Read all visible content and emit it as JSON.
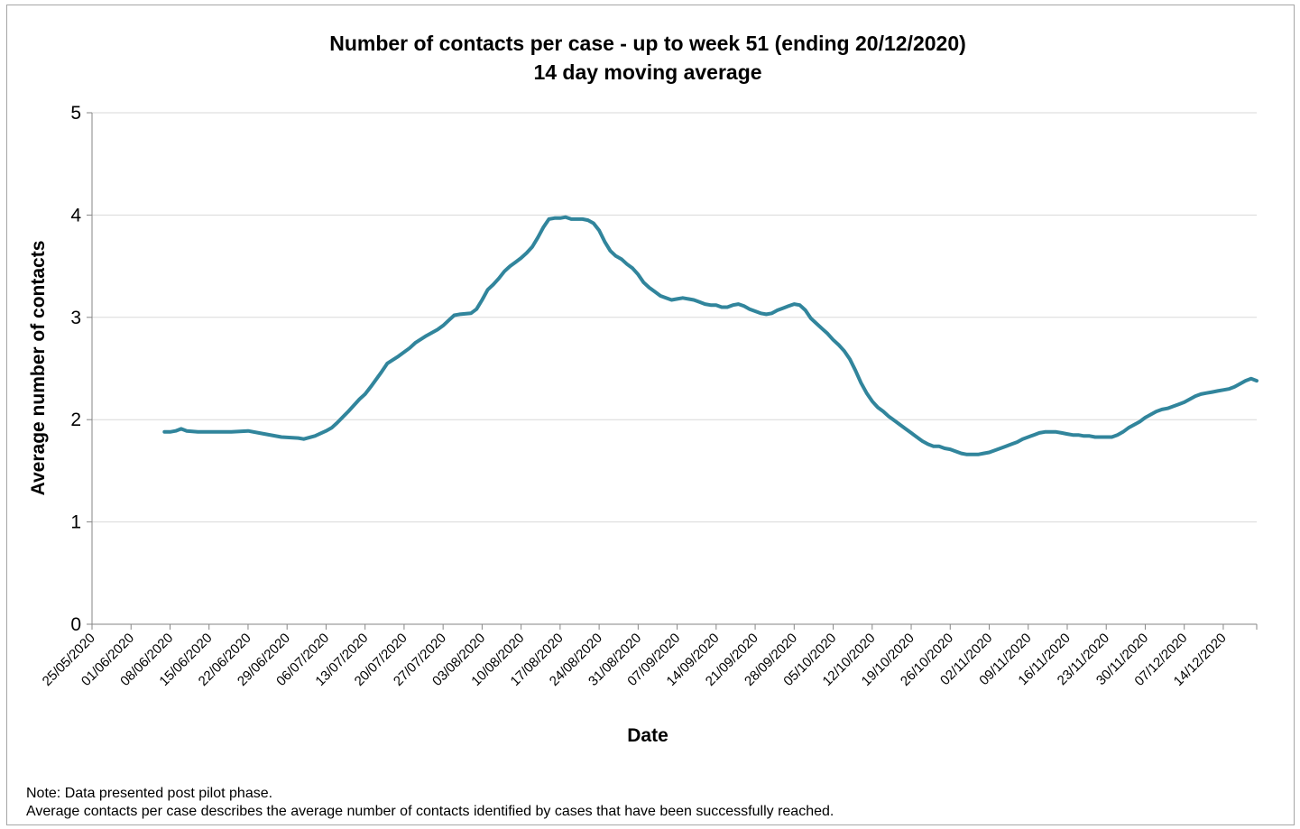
{
  "chart_data": {
    "type": "line",
    "title": "Number of contacts per case - up to week 51 (ending 20/12/2020)",
    "subtitle": "14 day moving average",
    "xlabel": "Date",
    "ylabel": "Average number of contacts",
    "ylim": [
      0,
      5
    ],
    "yticks": [
      "0",
      "1",
      "2",
      "3",
      "4",
      "5"
    ],
    "grid": "horizontal",
    "legend": "none",
    "line_color": "#31859c",
    "x_range": [
      "2020-05-25",
      "2020-12-20"
    ],
    "x_ticks": [
      "25/05/2020",
      "01/06/2020",
      "08/06/2020",
      "15/06/2020",
      "22/06/2020",
      "29/06/2020",
      "06/07/2020",
      "13/07/2020",
      "20/07/2020",
      "27/07/2020",
      "03/08/2020",
      "10/08/2020",
      "17/08/2020",
      "24/08/2020",
      "31/08/2020",
      "07/09/2020",
      "14/09/2020",
      "21/09/2020",
      "28/09/2020",
      "05/10/2020",
      "12/10/2020",
      "19/10/2020",
      "26/10/2020",
      "02/11/2020",
      "09/11/2020",
      "16/11/2020",
      "23/11/2020",
      "30/11/2020",
      "07/12/2020",
      "14/12/2020"
    ],
    "series": [
      {
        "values": [
          [
            "2020-06-07",
            1.88
          ],
          [
            "2020-06-08",
            1.88
          ],
          [
            "2020-06-09",
            1.89
          ],
          [
            "2020-06-10",
            1.91
          ],
          [
            "2020-06-11",
            1.89
          ],
          [
            "2020-06-13",
            1.88
          ],
          [
            "2020-06-16",
            1.88
          ],
          [
            "2020-06-19",
            1.88
          ],
          [
            "2020-06-22",
            1.89
          ],
          [
            "2020-06-25",
            1.86
          ],
          [
            "2020-06-28",
            1.83
          ],
          [
            "2020-07-01",
            1.82
          ],
          [
            "2020-07-02",
            1.81
          ],
          [
            "2020-07-04",
            1.84
          ],
          [
            "2020-07-06",
            1.89
          ],
          [
            "2020-07-07",
            1.92
          ],
          [
            "2020-07-08",
            1.97
          ],
          [
            "2020-07-10",
            2.08
          ],
          [
            "2020-07-12",
            2.2
          ],
          [
            "2020-07-13",
            2.25
          ],
          [
            "2020-07-14",
            2.32
          ],
          [
            "2020-07-16",
            2.47
          ],
          [
            "2020-07-17",
            2.55
          ],
          [
            "2020-07-19",
            2.62
          ],
          [
            "2020-07-21",
            2.7
          ],
          [
            "2020-07-22",
            2.75
          ],
          [
            "2020-07-24",
            2.82
          ],
          [
            "2020-07-26",
            2.88
          ],
          [
            "2020-07-27",
            2.92
          ],
          [
            "2020-07-28",
            2.97
          ],
          [
            "2020-07-29",
            3.02
          ],
          [
            "2020-07-30",
            3.03
          ],
          [
            "2020-08-01",
            3.04
          ],
          [
            "2020-08-02",
            3.08
          ],
          [
            "2020-08-03",
            3.17
          ],
          [
            "2020-08-04",
            3.27
          ],
          [
            "2020-08-05",
            3.32
          ],
          [
            "2020-08-06",
            3.38
          ],
          [
            "2020-08-07",
            3.45
          ],
          [
            "2020-08-08",
            3.5
          ],
          [
            "2020-08-09",
            3.54
          ],
          [
            "2020-08-10",
            3.58
          ],
          [
            "2020-08-11",
            3.63
          ],
          [
            "2020-08-12",
            3.69
          ],
          [
            "2020-08-13",
            3.78
          ],
          [
            "2020-08-14",
            3.88
          ],
          [
            "2020-08-15",
            3.96
          ],
          [
            "2020-08-16",
            3.97
          ],
          [
            "2020-08-17",
            3.97
          ],
          [
            "2020-08-18",
            3.98
          ],
          [
            "2020-08-19",
            3.96
          ],
          [
            "2020-08-21",
            3.96
          ],
          [
            "2020-08-22",
            3.95
          ],
          [
            "2020-08-23",
            3.92
          ],
          [
            "2020-08-24",
            3.85
          ],
          [
            "2020-08-25",
            3.74
          ],
          [
            "2020-08-26",
            3.65
          ],
          [
            "2020-08-27",
            3.6
          ],
          [
            "2020-08-28",
            3.57
          ],
          [
            "2020-08-29",
            3.52
          ],
          [
            "2020-08-30",
            3.48
          ],
          [
            "2020-08-31",
            3.42
          ],
          [
            "2020-09-01",
            3.34
          ],
          [
            "2020-09-02",
            3.29
          ],
          [
            "2020-09-03",
            3.25
          ],
          [
            "2020-09-04",
            3.21
          ],
          [
            "2020-09-05",
            3.19
          ],
          [
            "2020-09-06",
            3.17
          ],
          [
            "2020-09-07",
            3.18
          ],
          [
            "2020-09-08",
            3.19
          ],
          [
            "2020-09-09",
            3.18
          ],
          [
            "2020-09-10",
            3.17
          ],
          [
            "2020-09-11",
            3.15
          ],
          [
            "2020-09-12",
            3.13
          ],
          [
            "2020-09-13",
            3.12
          ],
          [
            "2020-09-14",
            3.12
          ],
          [
            "2020-09-15",
            3.1
          ],
          [
            "2020-09-16",
            3.1
          ],
          [
            "2020-09-17",
            3.12
          ],
          [
            "2020-09-18",
            3.13
          ],
          [
            "2020-09-19",
            3.11
          ],
          [
            "2020-09-20",
            3.08
          ],
          [
            "2020-09-21",
            3.06
          ],
          [
            "2020-09-22",
            3.04
          ],
          [
            "2020-09-23",
            3.03
          ],
          [
            "2020-09-24",
            3.04
          ],
          [
            "2020-09-25",
            3.07
          ],
          [
            "2020-09-26",
            3.09
          ],
          [
            "2020-09-27",
            3.11
          ],
          [
            "2020-09-28",
            3.13
          ],
          [
            "2020-09-29",
            3.12
          ],
          [
            "2020-09-30",
            3.07
          ],
          [
            "2020-10-01",
            2.99
          ],
          [
            "2020-10-02",
            2.94
          ],
          [
            "2020-10-03",
            2.89
          ],
          [
            "2020-10-04",
            2.84
          ],
          [
            "2020-10-05",
            2.78
          ],
          [
            "2020-10-06",
            2.73
          ],
          [
            "2020-10-07",
            2.67
          ],
          [
            "2020-10-08",
            2.59
          ],
          [
            "2020-10-09",
            2.48
          ],
          [
            "2020-10-10",
            2.36
          ],
          [
            "2020-10-11",
            2.26
          ],
          [
            "2020-10-12",
            2.18
          ],
          [
            "2020-10-13",
            2.12
          ],
          [
            "2020-10-14",
            2.08
          ],
          [
            "2020-10-15",
            2.03
          ],
          [
            "2020-10-16",
            1.99
          ],
          [
            "2020-10-17",
            1.95
          ],
          [
            "2020-10-18",
            1.91
          ],
          [
            "2020-10-19",
            1.87
          ],
          [
            "2020-10-20",
            1.83
          ],
          [
            "2020-10-21",
            1.79
          ],
          [
            "2020-10-22",
            1.76
          ],
          [
            "2020-10-23",
            1.74
          ],
          [
            "2020-10-24",
            1.74
          ],
          [
            "2020-10-25",
            1.72
          ],
          [
            "2020-10-26",
            1.71
          ],
          [
            "2020-10-27",
            1.69
          ],
          [
            "2020-10-28",
            1.67
          ],
          [
            "2020-10-29",
            1.66
          ],
          [
            "2020-10-30",
            1.66
          ],
          [
            "2020-10-31",
            1.66
          ],
          [
            "2020-11-01",
            1.67
          ],
          [
            "2020-11-02",
            1.68
          ],
          [
            "2020-11-03",
            1.7
          ],
          [
            "2020-11-04",
            1.72
          ],
          [
            "2020-11-05",
            1.74
          ],
          [
            "2020-11-06",
            1.76
          ],
          [
            "2020-11-07",
            1.78
          ],
          [
            "2020-11-08",
            1.81
          ],
          [
            "2020-11-09",
            1.83
          ],
          [
            "2020-11-10",
            1.85
          ],
          [
            "2020-11-11",
            1.87
          ],
          [
            "2020-11-12",
            1.88
          ],
          [
            "2020-11-13",
            1.88
          ],
          [
            "2020-11-14",
            1.88
          ],
          [
            "2020-11-15",
            1.87
          ],
          [
            "2020-11-16",
            1.86
          ],
          [
            "2020-11-17",
            1.85
          ],
          [
            "2020-11-18",
            1.85
          ],
          [
            "2020-11-19",
            1.84
          ],
          [
            "2020-11-20",
            1.84
          ],
          [
            "2020-11-21",
            1.83
          ],
          [
            "2020-11-22",
            1.83
          ],
          [
            "2020-11-23",
            1.83
          ],
          [
            "2020-11-24",
            1.83
          ],
          [
            "2020-11-25",
            1.85
          ],
          [
            "2020-11-26",
            1.88
          ],
          [
            "2020-11-27",
            1.92
          ],
          [
            "2020-11-28",
            1.95
          ],
          [
            "2020-11-29",
            1.98
          ],
          [
            "2020-11-30",
            2.02
          ],
          [
            "2020-12-01",
            2.05
          ],
          [
            "2020-12-02",
            2.08
          ],
          [
            "2020-12-03",
            2.1
          ],
          [
            "2020-12-04",
            2.11
          ],
          [
            "2020-12-05",
            2.13
          ],
          [
            "2020-12-06",
            2.15
          ],
          [
            "2020-12-07",
            2.17
          ],
          [
            "2020-12-08",
            2.2
          ],
          [
            "2020-12-09",
            2.23
          ],
          [
            "2020-12-10",
            2.25
          ],
          [
            "2020-12-11",
            2.26
          ],
          [
            "2020-12-12",
            2.27
          ],
          [
            "2020-12-13",
            2.28
          ],
          [
            "2020-12-14",
            2.29
          ],
          [
            "2020-12-15",
            2.3
          ],
          [
            "2020-12-16",
            2.32
          ],
          [
            "2020-12-17",
            2.35
          ],
          [
            "2020-12-18",
            2.38
          ],
          [
            "2020-12-19",
            2.4
          ],
          [
            "2020-12-20",
            2.38
          ]
        ]
      }
    ]
  },
  "notes": [
    "Note:  Data presented post pilot phase.",
    "Average contacts per case describes the average number of contacts identified by cases that have been successfully reached."
  ]
}
